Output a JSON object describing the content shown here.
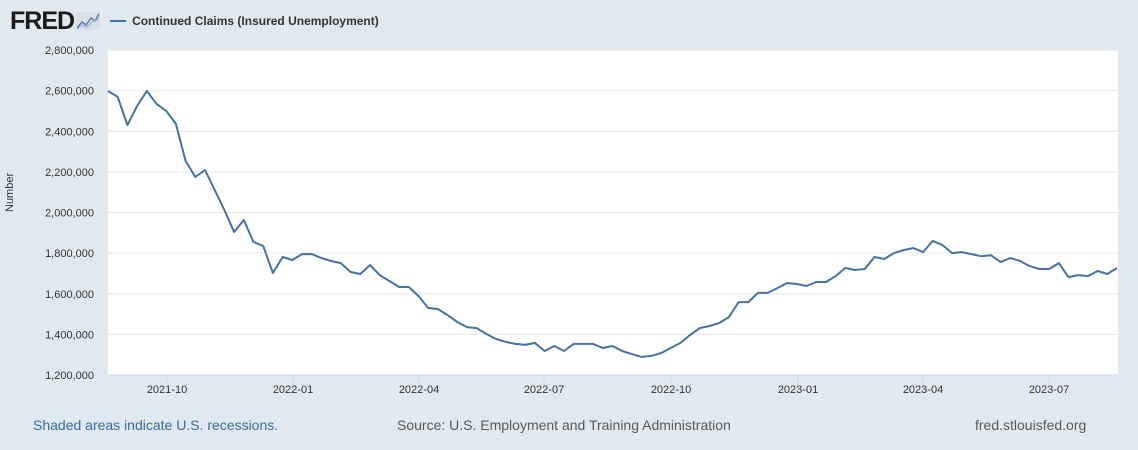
{
  "header": {
    "logo_text": "FRED",
    "series_title": "Continued Claims (Insured Unemployment)"
  },
  "colors": {
    "series": "#4572a7",
    "background": "#e1e9f0",
    "plot_background": "#ffffff",
    "grid": "#e6e6e6"
  },
  "footer": {
    "recessions_note": "Shaded areas indicate U.S. recessions.",
    "source": "Source: U.S. Employment and Training Administration",
    "site": "fred.stlouisfed.org"
  },
  "chart_data": {
    "type": "line",
    "title": "Continued Claims (Insured Unemployment)",
    "xlabel": "",
    "ylabel": "Number",
    "ylim": [
      1200000,
      2800000
    ],
    "yticks": [
      1200000,
      1400000,
      1600000,
      1800000,
      2000000,
      2200000,
      2400000,
      2600000,
      2800000
    ],
    "ytick_labels": [
      "1,200,000",
      "1,400,000",
      "1,600,000",
      "1,800,000",
      "2,000,000",
      "2,200,000",
      "2,400,000",
      "2,600,000",
      "2,800,000"
    ],
    "xtick_labels": [
      "2021-10",
      "2022-01",
      "2022-04",
      "2022-07",
      "2022-10",
      "2023-01",
      "2023-04",
      "2023-07"
    ],
    "grid": true,
    "legend_position": "top-left",
    "series": [
      {
        "name": "Continued Claims (Insured Unemployment)",
        "frequency": "weekly",
        "start": "2021-08-21",
        "values": [
          2598000,
          2569000,
          2431000,
          2524000,
          2598000,
          2535000,
          2500000,
          2436000,
          2254000,
          2175000,
          2209000,
          2111000,
          2012000,
          1904000,
          1963000,
          1855000,
          1835000,
          1702000,
          1781000,
          1766000,
          1795000,
          1795000,
          1776000,
          1761000,
          1751000,
          1707000,
          1697000,
          1741000,
          1692000,
          1663000,
          1633000,
          1633000,
          1589000,
          1530000,
          1525000,
          1495000,
          1461000,
          1436000,
          1431000,
          1402000,
          1377000,
          1363000,
          1353000,
          1348000,
          1358000,
          1318000,
          1343000,
          1318000,
          1353000,
          1353000,
          1353000,
          1333000,
          1343000,
          1318000,
          1303000,
          1289000,
          1294000,
          1308000,
          1333000,
          1358000,
          1397000,
          1431000,
          1441000,
          1456000,
          1485000,
          1559000,
          1559000,
          1604000,
          1604000,
          1628000,
          1653000,
          1648000,
          1638000,
          1658000,
          1658000,
          1687000,
          1727000,
          1717000,
          1722000,
          1781000,
          1771000,
          1800000,
          1815000,
          1825000,
          1805000,
          1860000,
          1840000,
          1800000,
          1805000,
          1795000,
          1785000,
          1790000,
          1756000,
          1776000,
          1761000,
          1736000,
          1722000,
          1722000,
          1751000,
          1682000,
          1692000,
          1687000,
          1712000,
          1697000,
          1727000
        ]
      }
    ]
  }
}
